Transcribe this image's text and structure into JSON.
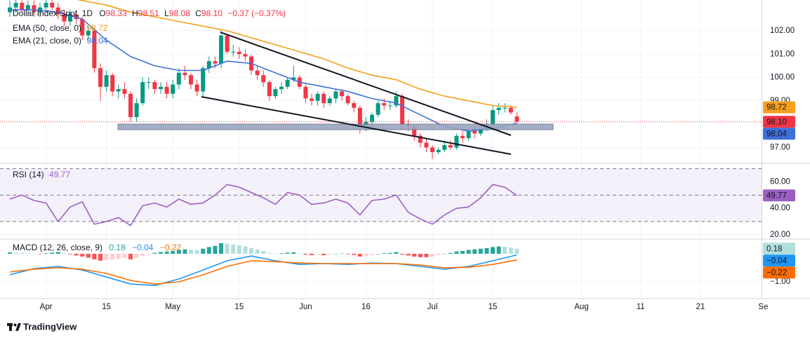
{
  "brand": "TradingView",
  "chart_data": [
    {
      "type": "candlestick",
      "title": "Dollar Index Spot, 1D",
      "ohlc_legend": [
        {
          "key": "O",
          "value": "98.33"
        },
        {
          "key": "H",
          "value": "98.51"
        },
        {
          "key": "L",
          "value": "98.08"
        },
        {
          "key": "C",
          "value": "98.10"
        }
      ],
      "change_label": "−0.37 (−0.37%)",
      "last_label": "98.10",
      "up_color": "#089981",
      "down_color": "#f23645",
      "x": [
        0,
        1,
        2,
        3,
        4,
        5,
        6,
        7,
        8,
        9,
        10,
        11,
        12,
        13,
        14,
        15,
        16,
        17,
        18,
        19,
        20,
        21,
        22,
        23,
        24,
        25,
        26,
        27,
        28,
        29,
        30,
        31,
        32,
        33,
        34,
        35,
        36,
        37,
        38,
        39,
        40,
        41,
        42,
        43,
        44,
        45,
        46,
        47,
        48,
        49,
        50,
        51,
        52,
        53,
        54,
        55,
        56,
        57,
        58,
        59,
        60,
        61,
        62,
        63,
        64,
        65,
        66,
        67,
        68,
        69,
        70,
        71,
        72,
        73,
        74,
        75,
        76,
        77,
        78,
        79,
        80,
        81,
        82,
        83,
        84
      ],
      "open": [
        102.8,
        103.0,
        103.2,
        102.9,
        103.1,
        102.8,
        103.0,
        103.2,
        103.0,
        102.7,
        102.4,
        102.7,
        102.5,
        101.8,
        102.0,
        100.4,
        99.6,
        100.1,
        99.4,
        99.5,
        99.3,
        98.3,
        98.9,
        99.8,
        99.8,
        99.5,
        99.6,
        99.3,
        99.7,
        100.2,
        100.1,
        99.7,
        99.4,
        100.4,
        100.7,
        100.6,
        101.8,
        101.1,
        101.1,
        101.0,
        100.9,
        100.3,
        100.1,
        99.8,
        99.2,
        99.5,
        99.6,
        99.9,
        100.0,
        99.6,
        99.1,
        99.0,
        99.3,
        98.9,
        99.1,
        99.4,
        99.2,
        98.9,
        98.7,
        97.9,
        98.1,
        98.4,
        98.9,
        98.8,
        98.8,
        99.2,
        98.0,
        97.9,
        97.5,
        97.2,
        97.0,
        96.8,
        96.9,
        97.1,
        97.0,
        97.5,
        97.4,
        97.7,
        97.6,
        97.8,
        98.0,
        98.6,
        98.7,
        98.7,
        98.33
      ],
      "high": [
        103.3,
        103.4,
        103.4,
        103.3,
        103.3,
        103.2,
        103.4,
        103.4,
        103.2,
        102.9,
        102.9,
        102.9,
        102.6,
        102.2,
        102.1,
        100.6,
        100.3,
        100.2,
        99.7,
        99.8,
        99.4,
        99.1,
        100.0,
        100.0,
        99.9,
        99.8,
        99.8,
        99.9,
        100.4,
        100.5,
        100.2,
        99.9,
        100.5,
        100.9,
        100.9,
        102.0,
        101.8,
        101.4,
        101.3,
        101.2,
        101.0,
        100.5,
        100.3,
        99.9,
        99.6,
        99.8,
        100.0,
        100.5,
        100.1,
        99.7,
        99.3,
        99.4,
        99.4,
        99.2,
        99.5,
        99.5,
        99.3,
        99.0,
        98.8,
        98.3,
        98.5,
        99.0,
        99.1,
        99.0,
        99.4,
        99.3,
        98.2,
        98.0,
        97.6,
        97.4,
        97.1,
        97.0,
        97.3,
        97.3,
        97.6,
        97.7,
        97.8,
        97.9,
        97.9,
        98.2,
        98.8,
        98.9,
        98.9,
        98.8,
        98.51
      ],
      "low": [
        102.6,
        102.8,
        102.8,
        102.7,
        102.6,
        102.6,
        102.8,
        102.9,
        102.5,
        102.2,
        102.2,
        102.3,
        101.6,
        101.6,
        100.2,
        99.0,
        99.4,
        99.2,
        99.1,
        99.1,
        98.1,
        98.1,
        98.8,
        99.5,
        99.3,
        99.3,
        99.1,
        99.1,
        99.5,
        99.9,
        99.5,
        99.2,
        99.2,
        100.2,
        100.4,
        100.4,
        101.0,
        100.9,
        100.8,
        100.7,
        100.1,
        99.9,
        99.6,
        99.0,
        99.1,
        99.3,
        99.5,
        99.8,
        99.5,
        98.9,
        98.8,
        98.8,
        98.7,
        98.8,
        98.9,
        99.0,
        98.8,
        98.5,
        97.6,
        97.7,
        97.9,
        98.3,
        98.6,
        98.6,
        98.7,
        97.8,
        97.7,
        97.3,
        97.0,
        96.8,
        96.5,
        96.7,
        96.8,
        96.9,
        96.9,
        97.2,
        97.3,
        97.4,
        97.5,
        97.7,
        97.9,
        98.4,
        98.5,
        98.4,
        98.08
      ],
      "close": [
        103.0,
        103.2,
        102.9,
        103.1,
        102.8,
        103.0,
        103.2,
        103.0,
        102.7,
        102.4,
        102.7,
        102.5,
        101.8,
        102.0,
        100.4,
        99.6,
        100.1,
        99.4,
        99.5,
        99.3,
        98.3,
        98.9,
        99.8,
        99.8,
        99.5,
        99.6,
        99.3,
        99.7,
        100.2,
        100.1,
        99.7,
        99.4,
        100.4,
        100.7,
        100.6,
        101.8,
        101.1,
        101.1,
        101.0,
        100.9,
        100.3,
        100.1,
        99.8,
        99.2,
        99.5,
        99.6,
        99.9,
        100.0,
        99.6,
        99.1,
        99.0,
        99.3,
        98.9,
        99.1,
        99.4,
        99.2,
        98.9,
        98.7,
        97.9,
        98.1,
        98.4,
        98.9,
        98.8,
        98.8,
        99.2,
        98.0,
        97.9,
        97.5,
        97.2,
        97.0,
        96.8,
        96.9,
        97.1,
        97.0,
        97.5,
        97.4,
        97.7,
        97.6,
        97.8,
        98.0,
        98.6,
        98.7,
        98.7,
        98.5,
        98.1
      ],
      "series": [
        {
          "name": "EMA (50, close, 0)",
          "color": "#f59f1b",
          "last_label": "98.72",
          "x": [
            0,
            4,
            8,
            12,
            16,
            20,
            24,
            28,
            32,
            36,
            40,
            44,
            48,
            52,
            56,
            60,
            64,
            68,
            72,
            76,
            80,
            84
          ],
          "values": [
            103.7,
            103.6,
            103.5,
            103.3,
            103.1,
            102.8,
            102.6,
            102.4,
            102.2,
            102.0,
            101.7,
            101.4,
            101.1,
            100.8,
            100.4,
            100.1,
            99.9,
            99.5,
            99.2,
            99.0,
            98.8,
            98.72
          ]
        },
        {
          "name": "EMA (21, close, 0)",
          "color": "#3f6fd9",
          "last_label": "98.04",
          "x": [
            0,
            4,
            8,
            12,
            16,
            20,
            24,
            28,
            32,
            36,
            40,
            44,
            48,
            52,
            56,
            60,
            64,
            68,
            72,
            76,
            80,
            84
          ],
          "values": [
            102.9,
            102.9,
            102.8,
            102.5,
            101.6,
            100.9,
            100.5,
            100.3,
            100.3,
            100.7,
            100.6,
            100.2,
            99.8,
            99.6,
            99.4,
            99.1,
            98.9,
            98.4,
            97.9,
            97.7,
            97.8,
            98.04
          ]
        }
      ],
      "xlim": [
        -1.63,
        124.53
      ],
      "xticks": [
        {
          "value": 6,
          "label": "Apr"
        },
        {
          "value": 16,
          "label": "15"
        },
        {
          "value": 27,
          "label": "May"
        },
        {
          "value": 38,
          "label": "15"
        },
        {
          "value": 49,
          "label": "Jun"
        },
        {
          "value": 59,
          "label": "16"
        },
        {
          "value": 70,
          "label": "Jul"
        },
        {
          "value": 80,
          "label": "15"
        },
        {
          "value": 94.7,
          "label": "Aug"
        },
        {
          "value": 104.5,
          "label": "11"
        },
        {
          "value": 114.4,
          "label": "21"
        },
        {
          "value": 124.8,
          "label": "Se"
        }
      ],
      "ylim": [
        96.35,
        103.32
      ],
      "yticks": [
        {
          "value": 97,
          "label": "97.00"
        },
        {
          "value": 99,
          "label": "99.00"
        },
        {
          "value": 100,
          "label": "100.00"
        },
        {
          "value": 101,
          "label": "101.00"
        },
        {
          "value": 102,
          "label": "102.00"
        }
      ],
      "grid": true
    },
    {
      "type": "line",
      "title": "RSI (14)",
      "series": [
        {
          "color": "#9b5fc0",
          "x": [
            0,
            2,
            4,
            6,
            8,
            10,
            12,
            14,
            16,
            18,
            20,
            22,
            24,
            26,
            28,
            30,
            32,
            34,
            36,
            38,
            40,
            42,
            44,
            46,
            48,
            50,
            52,
            54,
            56,
            58,
            60,
            62,
            64,
            66,
            68,
            70,
            72,
            74,
            76,
            78,
            80,
            82,
            84
          ],
          "values": [
            47,
            50,
            46,
            44,
            30,
            41,
            45,
            28,
            30,
            33,
            27,
            42,
            44,
            41,
            47,
            43,
            44,
            50,
            58,
            56,
            52,
            48,
            43,
            52,
            50,
            43,
            44,
            47,
            44,
            35,
            46,
            47,
            50,
            37,
            32,
            28,
            35,
            40,
            41,
            48,
            58,
            56,
            49.77
          ]
        }
      ],
      "levels": [
        70,
        50,
        30
      ],
      "band_color": "#ede7f6",
      "ylim": [
        17.3,
        73.5
      ],
      "yticks": [
        {
          "value": 20,
          "label": "20.00"
        },
        {
          "value": 40,
          "label": "40.00"
        },
        {
          "value": 60,
          "label": "60.00"
        }
      ],
      "grid": true
    },
    {
      "type": "macd",
      "title": "MACD (12, 26, close, 9)",
      "histogram": {
        "value_label": "0.18",
        "colors": [
          "#26a69a",
          "#b2dfdb",
          "#ffcdd2",
          "#ff5252"
        ],
        "x": [
          0,
          1,
          2,
          3,
          4,
          5,
          6,
          7,
          8,
          9,
          10,
          11,
          12,
          13,
          14,
          15,
          16,
          17,
          18,
          19,
          20,
          21,
          22,
          23,
          24,
          25,
          26,
          27,
          28,
          29,
          30,
          31,
          32,
          33,
          34,
          35,
          36,
          37,
          38,
          39,
          40,
          41,
          42,
          43,
          44,
          45,
          46,
          47,
          48,
          49,
          50,
          51,
          52,
          53,
          54,
          55,
          56,
          57,
          58,
          59,
          60,
          61,
          62,
          63,
          64,
          65,
          66,
          67,
          68,
          69,
          70,
          71,
          72,
          73,
          74,
          75,
          76,
          77,
          78,
          79,
          80,
          81,
          82,
          83,
          84
        ],
        "values": [
          0.05,
          0.04,
          0.03,
          0.02,
          0.01,
          -0.01,
          0.02,
          0.04,
          0.06,
          0.03,
          -0.02,
          -0.06,
          -0.1,
          -0.14,
          -0.2,
          -0.25,
          -0.22,
          -0.2,
          -0.18,
          -0.15,
          -0.2,
          -0.15,
          -0.08,
          -0.02,
          0.03,
          0.06,
          0.08,
          0.1,
          0.14,
          0.16,
          0.15,
          0.13,
          0.18,
          0.24,
          0.28,
          0.38,
          0.36,
          0.33,
          0.3,
          0.26,
          0.2,
          0.15,
          0.1,
          0.03,
          0.0,
          0.02,
          0.04,
          0.05,
          0.02,
          -0.03,
          -0.05,
          -0.03,
          -0.05,
          -0.03,
          0.0,
          0.01,
          -0.02,
          -0.04,
          -0.1,
          -0.08,
          -0.05,
          0.0,
          0.02,
          0.03,
          0.06,
          -0.03,
          -0.06,
          -0.1,
          -0.12,
          -0.12,
          -0.1,
          -0.05,
          0.0,
          0.03,
          0.08,
          0.1,
          0.14,
          0.16,
          0.18,
          0.2,
          0.24,
          0.26,
          0.25,
          0.22,
          0.18
        ]
      },
      "series": [
        {
          "color": "#2196f3",
          "value_label": "−0.04",
          "x": [
            0,
            4,
            8,
            12,
            16,
            20,
            24,
            28,
            32,
            36,
            40,
            44,
            48,
            52,
            56,
            60,
            64,
            68,
            72,
            76,
            80,
            84
          ],
          "values": [
            -0.75,
            -0.53,
            -0.45,
            -0.58,
            -0.83,
            -1.08,
            -1.13,
            -0.9,
            -0.58,
            -0.25,
            -0.08,
            -0.25,
            -0.38,
            -0.35,
            -0.38,
            -0.33,
            -0.35,
            -0.45,
            -0.55,
            -0.45,
            -0.25,
            -0.04
          ]
        },
        {
          "color": "#ff6d00",
          "value_label": "−0.22",
          "x": [
            0,
            4,
            8,
            12,
            16,
            20,
            24,
            28,
            32,
            36,
            40,
            44,
            48,
            52,
            56,
            60,
            64,
            68,
            72,
            76,
            80,
            84
          ],
          "values": [
            -0.65,
            -0.55,
            -0.5,
            -0.55,
            -0.7,
            -0.95,
            -1.08,
            -1.0,
            -0.75,
            -0.45,
            -0.25,
            -0.28,
            -0.33,
            -0.35,
            -0.35,
            -0.35,
            -0.35,
            -0.4,
            -0.5,
            -0.48,
            -0.38,
            -0.22
          ]
        }
      ],
      "ylim": [
        -1.575,
        0.5
      ],
      "yticks": [
        {
          "value": -1,
          "label": "−1.00"
        }
      ],
      "grid": true
    }
  ]
}
